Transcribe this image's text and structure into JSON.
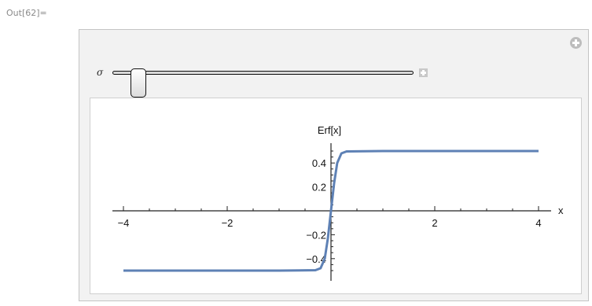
{
  "cell": {
    "out_label": "Out[62]="
  },
  "manipulate": {
    "control": {
      "label": "σ",
      "value_fraction": 0.06
    },
    "expand_icon": "plus-circle-icon",
    "slider_expand_icon": "plus-square-icon"
  },
  "chart_data": {
    "type": "line",
    "function_label": "Erf[x]",
    "xlabel": "x",
    "ylabel": "Erf[x]",
    "xlim": [
      -4,
      4
    ],
    "ylim": [
      -0.55,
      0.55
    ],
    "x_ticks": [
      -4,
      -2,
      2,
      4
    ],
    "x_tick_labels": [
      "−4",
      "−2",
      "2",
      "4"
    ],
    "y_ticks": [
      -0.4,
      -0.2,
      0.2,
      0.4
    ],
    "y_tick_labels": [
      "−0.4",
      "−0.2",
      "0.2",
      "0.4"
    ],
    "series": [
      {
        "color": "#5e81b5",
        "x": [
          -4,
          -3,
          -2,
          -1,
          -0.3,
          -0.2,
          -0.12,
          -0.06,
          0,
          0.06,
          0.12,
          0.2,
          0.3,
          1,
          2,
          3,
          4
        ],
        "y": [
          -0.5,
          -0.5,
          -0.5,
          -0.5,
          -0.497,
          -0.48,
          -0.4,
          -0.23,
          0,
          0.23,
          0.4,
          0.48,
          0.497,
          0.5,
          0.5,
          0.5,
          0.5
        ]
      }
    ]
  }
}
